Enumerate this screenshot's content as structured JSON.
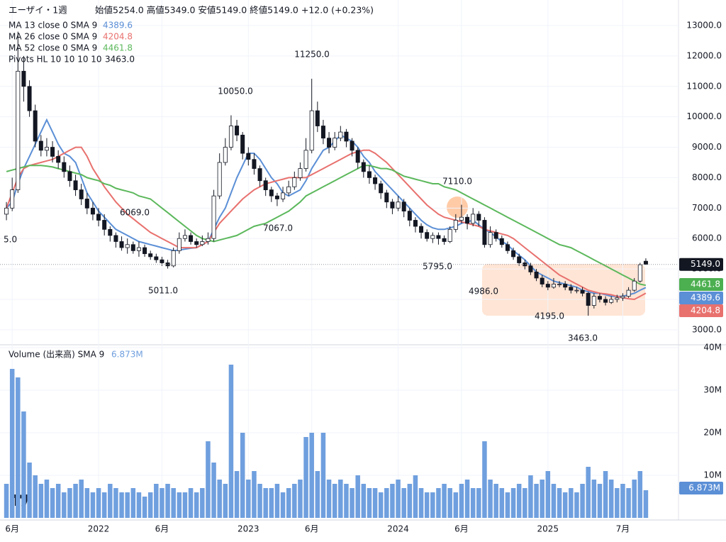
{
  "chart_data": [
    {
      "type": "candlestick",
      "title": "エーザイ・1週",
      "subtitle": "始値5254.0 高値5349.0 安値5149.0 終値5149.0 +12.0 (+0.23%)",
      "categories": [
        null,
        "6月",
        null,
        null,
        null,
        null,
        null,
        null,
        null,
        null,
        null,
        null,
        null,
        null,
        null,
        null,
        "2022",
        null,
        null,
        null,
        null,
        null,
        null,
        null,
        null,
        null,
        null,
        "6月",
        null,
        null,
        null,
        null,
        null,
        null,
        null,
        null,
        null,
        null,
        null,
        null,
        null,
        null,
        "2023",
        null,
        null,
        null,
        null,
        null,
        null,
        null,
        null,
        null,
        null,
        "6月",
        null,
        null,
        null,
        null,
        null,
        null,
        null,
        null,
        null,
        null,
        null,
        null,
        null,
        null,
        "2024",
        null,
        null,
        null,
        null,
        null,
        null,
        null,
        null,
        null,
        null,
        "6月",
        null,
        null,
        null,
        null,
        null,
        null,
        null,
        null,
        null,
        null,
        null,
        null,
        null,
        null,
        "2025",
        null,
        null,
        null,
        null,
        null,
        null,
        null,
        null,
        null,
        null,
        null,
        null,
        "7月",
        null,
        null,
        null,
        null
      ],
      "open": [
        6800,
        7000,
        7600,
        11500,
        11000,
        10200,
        9200,
        8900,
        9000,
        8700,
        8500,
        8200,
        7900,
        7600,
        7300,
        7000,
        6800,
        6600,
        6300,
        6100,
        5900,
        5700,
        5800,
        5600,
        5700,
        5500,
        5400,
        5300,
        5200,
        5100,
        5600,
        6000,
        6100,
        5900,
        5800,
        5900,
        6000,
        7400,
        8500,
        9000,
        9700,
        9400,
        8800,
        8600,
        8300,
        7900,
        7600,
        7400,
        7300,
        7500,
        7700,
        8000,
        8300,
        8900,
        10200,
        9700,
        9300,
        9000,
        9300,
        9500,
        9200,
        8900,
        8500,
        8200,
        8000,
        7800,
        7500,
        7200,
        7000,
        7200,
        6900,
        6600,
        6400,
        6200,
        6000,
        6100,
        6000,
        5900,
        6300,
        6600,
        6700,
        6500,
        6800,
        6600,
        5800,
        6200,
        6000,
        5800,
        5600,
        5400,
        5200,
        5100,
        4900,
        4700,
        4500,
        4400,
        4500,
        4500,
        4400,
        4300,
        4300,
        4200,
        3800,
        4100,
        4000,
        3900,
        4000,
        4050,
        4100,
        4300,
        4600,
        5254
      ],
      "high": [
        7200,
        8000,
        12800,
        12000,
        11200,
        10400,
        9400,
        9300,
        9200,
        8900,
        8700,
        8400,
        8100,
        7800,
        7500,
        7200,
        7000,
        6800,
        6400,
        6200,
        6069,
        6000,
        5900,
        5900,
        5800,
        5600,
        5500,
        5400,
        5300,
        5700,
        6200,
        6300,
        6200,
        6000,
        6100,
        6200,
        7600,
        8800,
        9300,
        10050,
        9900,
        9500,
        9000,
        8800,
        8400,
        8000,
        7700,
        7500,
        7700,
        7900,
        8200,
        8500,
        9300,
        11250,
        10500,
        9900,
        9500,
        9500,
        9700,
        9600,
        9300,
        9000,
        8600,
        8400,
        8100,
        7900,
        7600,
        7300,
        7400,
        7300,
        7000,
        6700,
        6500,
        6300,
        6200,
        6200,
        6100,
        6400,
        6800,
        7110,
        6800,
        7000,
        6900,
        6700,
        6400,
        6300,
        6100,
        5900,
        5700,
        5500,
        5300,
        5200,
        5000,
        4800,
        4600,
        4700,
        4600,
        4600,
        4500,
        4400,
        4400,
        4250,
        4200,
        4200,
        4100,
        4100,
        4150,
        4200,
        4400,
        4700,
        5200,
        5349
      ],
      "low": [
        6600,
        6900,
        7500,
        10500,
        10000,
        9000,
        8700,
        8700,
        8500,
        8300,
        8000,
        7700,
        7400,
        7100,
        6800,
        6600,
        6400,
        6100,
        5900,
        5700,
        5600,
        5500,
        5500,
        5400,
        5400,
        5300,
        5200,
        5100,
        5011,
        5050,
        5500,
        5900,
        5800,
        5700,
        5750,
        5800,
        5900,
        7300,
        8400,
        8900,
        9200,
        8600,
        8400,
        8100,
        7700,
        7400,
        7200,
        7067,
        7200,
        7400,
        7600,
        7900,
        8200,
        8800,
        9500,
        9100,
        8800,
        8900,
        9200,
        9000,
        8700,
        8300,
        8000,
        7800,
        7600,
        7300,
        7000,
        6800,
        6900,
        6700,
        6400,
        6200,
        6000,
        5900,
        5850,
        5800,
        5795,
        5850,
        6200,
        6500,
        6300,
        6400,
        6400,
        5700,
        5700,
        5900,
        5700,
        5500,
        5300,
        5100,
        4986,
        4800,
        4600,
        4400,
        4300,
        4350,
        4400,
        4300,
        4195,
        4200,
        4100,
        3463,
        3700,
        3900,
        3800,
        3850,
        3900,
        3950,
        4050,
        4250,
        4550,
        5149
      ],
      "close": [
        7000,
        7600,
        11500,
        11000,
        10200,
        9200,
        8900,
        9000,
        8700,
        8500,
        8200,
        7900,
        7600,
        7300,
        7000,
        6800,
        6600,
        6300,
        6100,
        5900,
        5700,
        5800,
        5600,
        5700,
        5500,
        5400,
        5300,
        5200,
        5100,
        5600,
        6000,
        6100,
        5900,
        5800,
        5900,
        6000,
        7400,
        8500,
        9000,
        9700,
        9400,
        8800,
        8600,
        8300,
        7900,
        7600,
        7400,
        7300,
        7500,
        7700,
        8000,
        8300,
        8900,
        10200,
        9700,
        9300,
        9000,
        9300,
        9500,
        9200,
        8900,
        8500,
        8200,
        8000,
        7800,
        7500,
        7200,
        7000,
        7200,
        6900,
        6600,
        6400,
        6200,
        6000,
        6100,
        6000,
        5900,
        6300,
        6600,
        6700,
        6500,
        6800,
        6600,
        5800,
        6200,
        6000,
        5800,
        5600,
        5400,
        5200,
        5100,
        4900,
        4700,
        4500,
        4400,
        4500,
        4500,
        4400,
        4300,
        4300,
        4200,
        3800,
        4100,
        4000,
        3900,
        4000,
        4050,
        4100,
        4300,
        4600,
        5137,
        5149
      ],
      "last_label": "5149.0",
      "up_color": "#ffffff",
      "down_color": "#131722",
      "series": [
        {
          "name": "MA 13 close 0 SMA 9",
          "color": "#5b8fd6",
          "values": [
            7000,
            7200,
            7800,
            8300,
            8700,
            9100,
            9500,
            9900,
            9500,
            9100,
            8800,
            8700,
            8500,
            8000,
            7500,
            7200,
            6900,
            6700,
            6500,
            6300,
            6200,
            6100,
            6000,
            5900,
            5850,
            5800,
            5750,
            5700,
            5650,
            5600,
            5620,
            5650,
            5680,
            5700,
            5800,
            5900,
            6300,
            6700,
            7000,
            7500,
            8000,
            8400,
            8800,
            8800,
            8600,
            8300,
            8000,
            7800,
            7500,
            7400,
            7500,
            7600,
            7900,
            8300,
            8600,
            8900,
            9000,
            9200,
            9400,
            9300,
            9200,
            9000,
            8700,
            8500,
            8200,
            8000,
            7800,
            7600,
            7400,
            7200,
            7000,
            6800,
            6600,
            6450,
            6350,
            6300,
            6300,
            6350,
            6400,
            6500,
            6550,
            6600,
            6450,
            6300,
            6200,
            6050,
            5900,
            5800,
            5600,
            5450,
            5300,
            5100,
            4900,
            4800,
            4700,
            4600,
            4550,
            4500,
            4450,
            4400,
            4300,
            4250,
            4200,
            4200,
            4150,
            4100,
            4100,
            4100,
            4150,
            4200,
            4300,
            4389.6
          ]
        },
        {
          "name": "MA 26 close 0 SMA 9",
          "color": "#e8716e",
          "values": [
            7000,
            7500,
            8000,
            8300,
            8400,
            8450,
            8500,
            8550,
            8600,
            8700,
            8800,
            8900,
            9000,
            9000,
            8700,
            8300,
            8000,
            7700,
            7450,
            7200,
            7000,
            6800,
            6650,
            6500,
            6350,
            6200,
            6100,
            6000,
            5900,
            5800,
            5700,
            5700,
            5700,
            5700,
            5800,
            5900,
            6200,
            6500,
            6700,
            6900,
            7100,
            7300,
            7450,
            7600,
            7700,
            7800,
            7850,
            7900,
            7950,
            8000,
            8000,
            8000,
            8000,
            8100,
            8200,
            8300,
            8400,
            8500,
            8600,
            8700,
            8800,
            8850,
            8900,
            8900,
            8800,
            8650,
            8500,
            8300,
            8100,
            7900,
            7700,
            7500,
            7300,
            7100,
            6950,
            6800,
            6700,
            6650,
            6600,
            6550,
            6500,
            6450,
            6400,
            6300,
            6250,
            6200,
            6150,
            6100,
            6000,
            5850,
            5700,
            5550,
            5400,
            5250,
            5100,
            4950,
            4800,
            4700,
            4600,
            4500,
            4400,
            4300,
            4250,
            4200,
            4180,
            4150,
            4100,
            4050,
            4020,
            4000,
            4100,
            4204.8
          ]
        },
        {
          "name": "MA 52 close 0 SMA 9",
          "color": "#5cb85c",
          "values": [
            8200,
            8250,
            8300,
            8350,
            8400,
            8400,
            8400,
            8380,
            8350,
            8300,
            8250,
            8200,
            8150,
            8100,
            8000,
            7950,
            7900,
            7800,
            7750,
            7650,
            7600,
            7550,
            7500,
            7400,
            7350,
            7300,
            7150,
            7000,
            6850,
            6700,
            6550,
            6400,
            6250,
            6100,
            6000,
            5950,
            5900,
            5950,
            6000,
            6050,
            6100,
            6200,
            6300,
            6400,
            6450,
            6500,
            6600,
            6700,
            6800,
            6900,
            7050,
            7200,
            7400,
            7500,
            7600,
            7700,
            7800,
            7900,
            8000,
            8100,
            8200,
            8300,
            8400,
            8400,
            8350,
            8300,
            8300,
            8250,
            8150,
            8050,
            8000,
            7950,
            7900,
            7850,
            7800,
            7800,
            7700,
            7650,
            7600,
            7500,
            7400,
            7300,
            7200,
            7100,
            7000,
            6900,
            6800,
            6700,
            6600,
            6500,
            6400,
            6300,
            6200,
            6100,
            6000,
            5900,
            5800,
            5750,
            5700,
            5600,
            5500,
            5400,
            5300,
            5200,
            5100,
            5000,
            4900,
            4800,
            4700,
            4600,
            4500,
            4461.8
          ]
        }
      ],
      "pivots": {
        "name": "Pivots HL 10 10 10 10",
        "labels": [
          "5.0",
          "6069.0",
          "5011.0",
          "10050.0",
          "7067.0",
          "11250.0",
          "5795.0",
          "7110.0",
          "4986.0",
          "4195.0",
          "3463.0"
        ]
      },
      "ylim": [
        2530,
        13840
      ],
      "yticks": [
        {
          "value": 3000,
          "label": "3000.0"
        },
        {
          "value": 4000,
          "label": "4000.0"
        },
        {
          "value": 5000,
          "label": "5000.0"
        },
        {
          "value": 6000,
          "label": "6000.0"
        },
        {
          "value": 7000,
          "label": "7000.0"
        },
        {
          "value": 8000,
          "label": "8000.0"
        },
        {
          "value": 9000,
          "label": "9000.0"
        },
        {
          "value": 10000,
          "label": "10000.0"
        },
        {
          "value": 11000,
          "label": "11000.0"
        },
        {
          "value": 12000,
          "label": "12000.0"
        },
        {
          "value": 13000,
          "label": "13000.0"
        }
      ],
      "grid": true
    },
    {
      "type": "bar",
      "title": "Volume (出来高) SMA 9",
      "sma_label": "6.873M",
      "color": "#6f9fde",
      "values": [
        8000000,
        35000000,
        33000000,
        25000000,
        13000000,
        10000000,
        8000000,
        9000000,
        7000000,
        8000000,
        6000000,
        7000000,
        8000000,
        9000000,
        7000000,
        6000000,
        7000000,
        6000000,
        8000000,
        7000000,
        6000000,
        6000000,
        7000000,
        6000000,
        5000000,
        6000000,
        8000000,
        7000000,
        8000000,
        7000000,
        6000000,
        6000000,
        7000000,
        6000000,
        7000000,
        18000000,
        13000000,
        9000000,
        8000000,
        36000000,
        11000000,
        20000000,
        9000000,
        11000000,
        8000000,
        7000000,
        7000000,
        8000000,
        6000000,
        7000000,
        8000000,
        9000000,
        19000000,
        20000000,
        11000000,
        20000000,
        9000000,
        8000000,
        9000000,
        8000000,
        7000000,
        10000000,
        8000000,
        7000000,
        7000000,
        6000000,
        7000000,
        8000000,
        9000000,
        7000000,
        8000000,
        10000000,
        7000000,
        6000000,
        6000000,
        7000000,
        8000000,
        7000000,
        6000000,
        8000000,
        9000000,
        7000000,
        7000000,
        18000000,
        9000000,
        8000000,
        7000000,
        6000000,
        7000000,
        8000000,
        7000000,
        10000000,
        8000000,
        9000000,
        11000000,
        8000000,
        7000000,
        6000000,
        7000000,
        6000000,
        8000000,
        12000000,
        9000000,
        8000000,
        11000000,
        9000000,
        7000000,
        8000000,
        7000000,
        9000000,
        11000000,
        6500000
      ],
      "ylim": [
        0,
        40500000
      ],
      "yticks": [
        {
          "value": 10000000,
          "label": "10M"
        },
        {
          "value": 20000000,
          "label": "20M"
        },
        {
          "value": 30000000,
          "label": "30M"
        },
        {
          "value": 40000000,
          "label": "40M"
        }
      ],
      "grid": true
    }
  ]
}
